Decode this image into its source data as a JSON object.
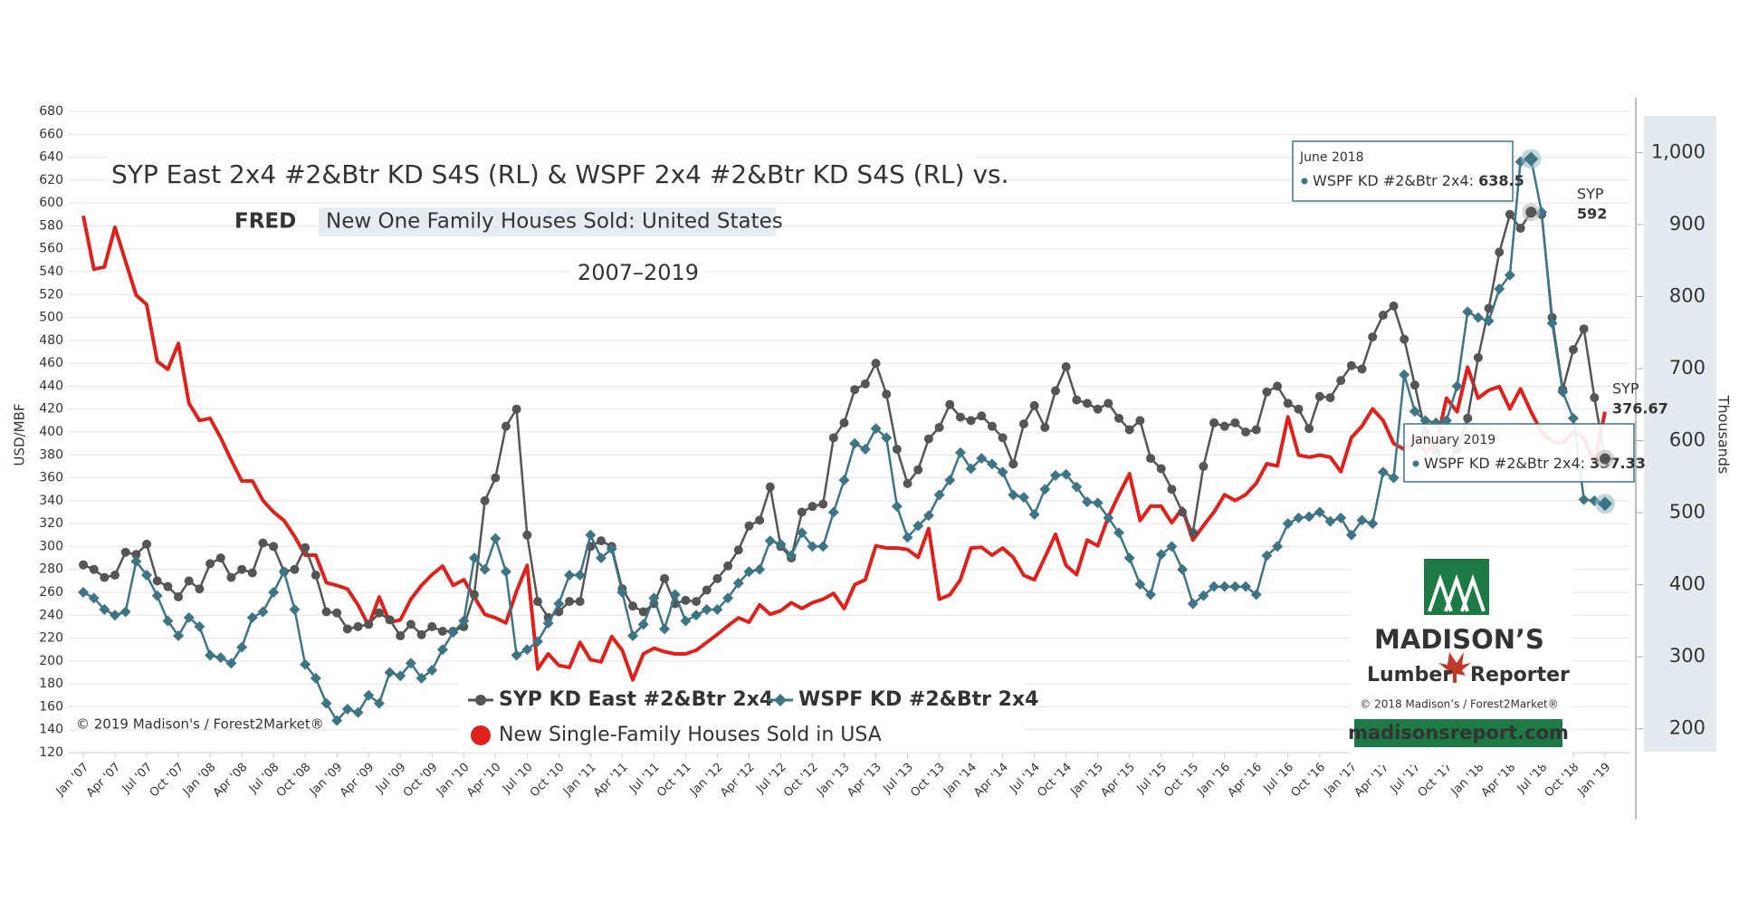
{
  "chart_data": {
    "type": "line",
    "title": "SYP East 2x4 #2&Btr KD S4S (RL) & WSPF 2x4 #2&Btr KD S4S (RL)  vs.",
    "source_logo": "FRED",
    "subtitle": "New One Family Houses Sold: United States",
    "period": "2007–2019",
    "y_label": "USD/MBF",
    "y2_label": "Thousands",
    "copyright": "© 2019 Madison's / Forest2Market®",
    "categories": [
      "Jan '07",
      null,
      null,
      "Apr '07",
      null,
      null,
      "Jul '07",
      null,
      null,
      "Oct '07",
      null,
      null,
      "Jan '08",
      null,
      null,
      "Apr '08",
      null,
      null,
      "Jul '08",
      null,
      null,
      "Oct '08",
      null,
      null,
      "Jan '09",
      null,
      null,
      "Apr '09",
      null,
      null,
      "Jul '09",
      null,
      null,
      "Oct '09",
      null,
      null,
      "Jan '10",
      null,
      null,
      "Apr '10",
      null,
      null,
      "Jul '10",
      null,
      null,
      "Oct '10",
      null,
      null,
      "Jan '11",
      null,
      null,
      "Apr '11",
      null,
      null,
      "Jul '11",
      null,
      null,
      "Oct '11",
      null,
      null,
      "Jan '12",
      null,
      null,
      "Apr '12",
      null,
      null,
      "Jul '12",
      null,
      null,
      "Oct '12",
      null,
      null,
      "Jan '13",
      null,
      null,
      "Apr '13",
      null,
      null,
      "Jul '13",
      null,
      null,
      "Oct '13",
      null,
      null,
      "Jan '14",
      null,
      null,
      "Apr '14",
      null,
      null,
      "Jul '14",
      null,
      null,
      "Oct '14",
      null,
      null,
      "Jan '15",
      null,
      null,
      "Apr '15",
      null,
      null,
      "Jul '15",
      null,
      null,
      "Oct '15",
      null,
      null,
      "Jan '16",
      null,
      null,
      "Apr '16",
      null,
      null,
      "Jul '16",
      null,
      null,
      "Oct '16",
      null,
      null,
      "Jan '17",
      null,
      null,
      "Apr '17",
      null,
      null,
      "Jul '17",
      null,
      null,
      "Oct '17",
      null,
      null,
      "Jan '18",
      null,
      null,
      "Apr '18",
      null,
      null,
      "Jul '18",
      null,
      null,
      "Oct '18",
      null,
      null,
      "Jan '19"
    ],
    "series": [
      {
        "name": "SYP KD East #2&Btr 2x4",
        "color": "#555555",
        "marker": "circle",
        "axis": "y",
        "values": [
          284,
          280,
          273,
          275,
          295,
          293,
          302,
          270,
          265,
          256,
          270,
          263,
          285,
          290,
          273,
          280,
          277,
          303,
          300,
          278,
          280,
          299,
          275,
          243,
          242,
          228,
          230,
          232,
          242,
          236,
          222,
          232,
          223,
          230,
          226,
          226,
          230,
          258,
          340,
          360,
          405,
          420,
          310,
          252,
          238,
          243,
          252,
          252,
          300,
          305,
          300,
          263,
          248,
          243,
          250,
          272,
          250,
          253,
          252,
          262,
          272,
          283,
          297,
          318,
          323,
          352,
          300,
          290,
          330,
          335,
          337,
          395,
          408,
          437,
          442,
          460,
          433,
          385,
          355,
          367,
          394,
          404,
          424,
          413,
          410,
          414,
          405,
          395,
          372,
          407,
          423,
          404,
          436,
          457,
          428,
          425,
          420,
          425,
          412,
          402,
          410,
          377,
          368,
          350,
          330,
          312,
          370,
          408,
          405,
          408,
          400,
          402,
          435,
          440,
          425,
          420,
          403,
          431,
          430,
          445,
          458,
          455,
          483,
          502,
          510,
          481,
          441,
          400,
          383,
          373,
          385,
          412,
          465,
          508,
          557,
          590,
          578,
          592,
          590,
          500,
          437,
          472,
          490,
          430,
          376.67
        ]
      },
      {
        "name": "WSPF KD #2&Btr 2x4",
        "color": "#3d7585",
        "marker": "diamond",
        "axis": "y",
        "values": [
          260,
          255,
          245,
          240,
          243,
          287,
          275,
          257,
          235,
          222,
          238,
          230,
          205,
          203,
          198,
          212,
          238,
          243,
          260,
          278,
          245,
          197,
          185,
          163,
          148,
          158,
          155,
          170,
          163,
          190,
          187,
          198,
          185,
          192,
          210,
          225,
          235,
          290,
          280,
          307,
          278,
          205,
          210,
          217,
          233,
          250,
          275,
          275,
          310,
          290,
          298,
          260,
          222,
          232,
          255,
          228,
          258,
          235,
          240,
          245,
          245,
          255,
          268,
          278,
          280,
          305,
          302,
          292,
          312,
          300,
          300,
          330,
          358,
          390,
          385,
          403,
          395,
          335,
          308,
          318,
          327,
          345,
          358,
          382,
          368,
          377,
          372,
          365,
          345,
          343,
          328,
          350,
          362,
          363,
          352,
          339,
          338,
          325,
          312,
          290,
          267,
          258,
          293,
          300,
          280,
          250,
          257,
          265,
          265,
          265,
          265,
          258,
          292,
          300,
          320,
          325,
          326,
          330,
          322,
          325,
          310,
          323,
          320,
          365,
          360,
          450,
          418,
          410,
          408,
          410,
          440,
          505,
          500,
          497,
          525,
          537,
          636,
          638.5,
          592,
          495,
          435,
          412,
          341,
          340,
          337.33
        ]
      },
      {
        "name": "New Single-Family Houses Sold in USA",
        "color": "#e0201b",
        "marker": "none",
        "axis": "y2",
        "values": [
          912,
          838,
          841,
          896,
          849,
          802,
          789,
          710,
          699,
          735,
          652,
          628,
          631,
          604,
          573,
          544,
          544,
          517,
          501,
          489,
          467,
          441,
          441,
          403,
          399,
          394,
          372,
          343,
          383,
          348,
          351,
          380,
          399,
          414,
          426,
          399,
          407,
          383,
          359,
          354,
          347,
          391,
          427,
          283,
          304,
          288,
          285,
          320,
          296,
          293,
          328,
          309,
          268,
          304,
          312,
          307,
          304,
          304,
          309,
          320,
          331,
          343,
          354,
          348,
          372,
          359,
          364,
          375,
          367,
          375,
          380,
          388,
          367,
          400,
          407,
          454,
          451,
          451,
          449,
          438,
          478,
          380,
          386,
          407,
          451,
          452,
          441,
          451,
          438,
          413,
          407,
          438,
          470,
          427,
          414,
          462,
          454,
          494,
          525,
          554,
          489,
          509,
          509,
          486,
          506,
          462,
          482,
          501,
          525,
          517,
          525,
          541,
          568,
          565,
          633,
          580,
          577,
          580,
          577,
          557,
          604,
          620,
          644,
          628,
          596,
          588,
          604,
          584,
          593,
          659,
          640,
          702,
          659,
          670,
          675,
          644,
          672,
          640,
          612,
          599,
          596,
          612,
          604,
          568,
          640
        ]
      }
    ],
    "ylim": [
      120,
      680
    ],
    "yticks": [
      120,
      140,
      160,
      180,
      200,
      220,
      240,
      260,
      280,
      300,
      320,
      340,
      360,
      380,
      400,
      420,
      440,
      460,
      480,
      500,
      520,
      540,
      560,
      580,
      600,
      620,
      640,
      660,
      680
    ],
    "y2lim": [
      167,
      1057
    ],
    "y2ticks": [
      200,
      300,
      400,
      500,
      600,
      700,
      800,
      900,
      {
        "value": 1000,
        "label": "1,000"
      }
    ],
    "grid": true,
    "tooltips": [
      {
        "title": "June 2018",
        "label": "WSPF KD #2&Btr 2x4:",
        "value": 638.5
      },
      {
        "title": "January 2019",
        "label": "WSPF KD #2&Btr 2x4:",
        "value": 337.33
      }
    ],
    "point_labels": [
      {
        "label": "SYP",
        "value": 592
      },
      {
        "label": "SYP",
        "value": 376.67
      }
    ],
    "logo": {
      "name": "MADISON’S",
      "line1": "Lumber",
      "line2": "Reporter",
      "copyright": "© 2018 Madison’s / Forest2Market®",
      "url": "madisonsreport.com"
    }
  }
}
